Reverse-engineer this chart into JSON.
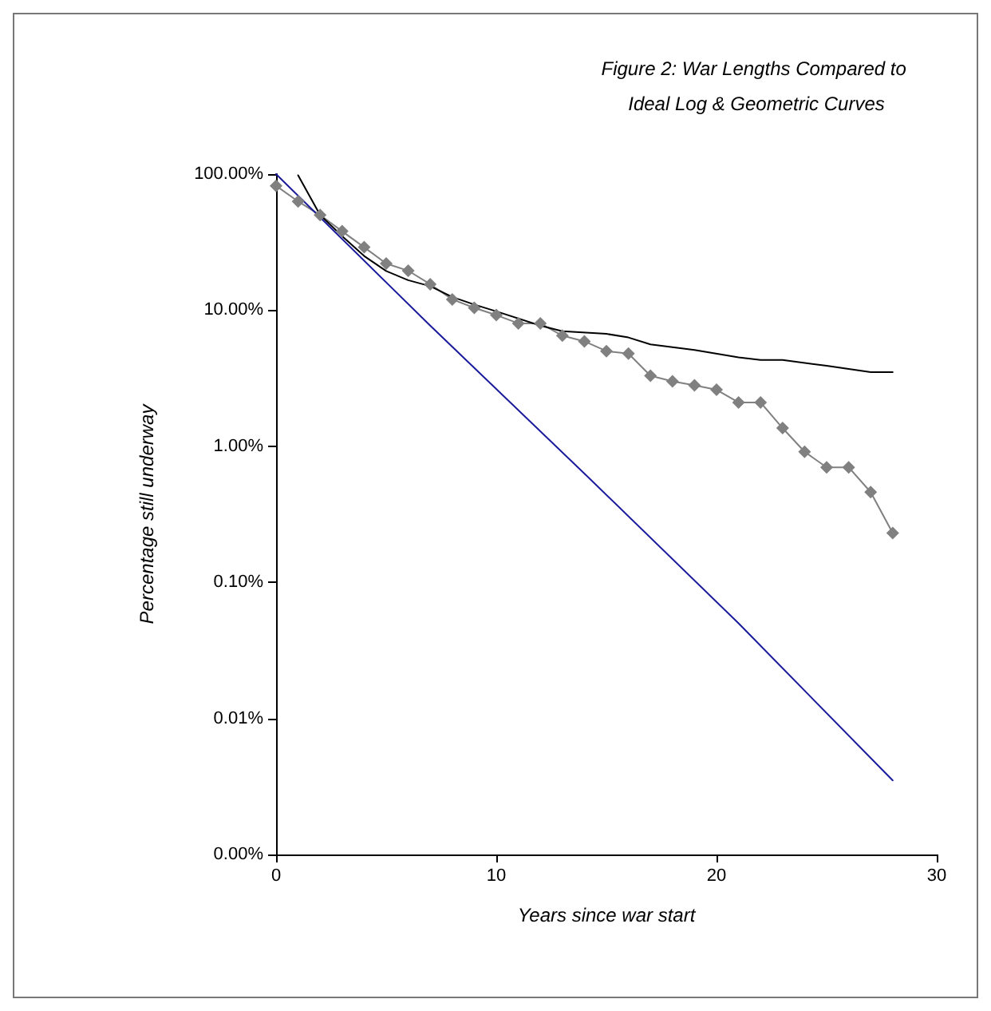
{
  "chart_data": {
    "type": "line",
    "title": "Figure 2: War Lengths Compared to Ideal Log & Geometric Curves",
    "xlabel": "Years since war start",
    "ylabel": "Percentage still underway",
    "log": "y",
    "grid": false,
    "xlim": [
      0,
      30
    ],
    "xticks": [
      0,
      10,
      20,
      30
    ],
    "ylim": [
      0.001,
      100
    ],
    "yticks": [
      {
        "value": 100,
        "label": "100.00%"
      },
      {
        "value": 10,
        "label": "10.00%"
      },
      {
        "value": 1,
        "label": "1.00%"
      },
      {
        "value": 0.1,
        "label": "0.10%"
      },
      {
        "value": 0.01,
        "label": "0.01%"
      },
      {
        "value": 0.001,
        "label": "0.00%"
      }
    ],
    "series": [
      {
        "color": "#808080",
        "marker": "diamond",
        "x": [
          0,
          1,
          2,
          3,
          4,
          5,
          6,
          7,
          8,
          9,
          10,
          11,
          12,
          13,
          14,
          15,
          16,
          17,
          18,
          19,
          20,
          21,
          22,
          23,
          24,
          25,
          26,
          27,
          28
        ],
        "values": [
          82,
          63,
          50,
          38,
          29,
          22,
          19.5,
          15.5,
          12,
          10.4,
          9.2,
          8,
          8,
          6.5,
          5.9,
          5,
          4.8,
          3.3,
          3,
          2.8,
          2.6,
          2.1,
          2.1,
          1.36,
          0.91,
          0.7,
          0.7,
          0.46,
          0.23
        ]
      },
      {
        "color": "#000000",
        "marker": "none",
        "x": [
          1,
          2,
          3,
          4,
          5,
          6,
          7,
          8,
          9,
          10,
          12,
          13,
          15,
          16,
          17,
          19,
          21,
          22,
          23,
          25,
          27,
          28
        ],
        "values": [
          98,
          50,
          35,
          25,
          19.4,
          16.6,
          15,
          12.5,
          11,
          9.8,
          7.7,
          7,
          6.7,
          6.3,
          5.6,
          5.1,
          4.5,
          4.3,
          4.3,
          3.9,
          3.5,
          3.5
        ]
      },
      {
        "color": "#1a1a9c",
        "marker": "none",
        "x": [
          0,
          7,
          14,
          21,
          28
        ],
        "values": [
          100,
          7.7,
          0.63,
          0.05,
          0.0035
        ]
      }
    ]
  }
}
